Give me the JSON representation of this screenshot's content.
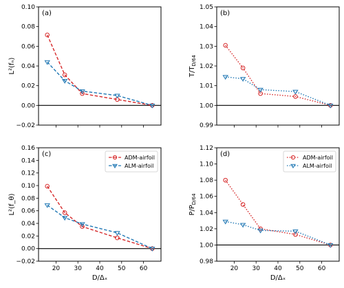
{
  "chart_data": [
    {
      "type": "line",
      "panel_label": "(a)",
      "ylabel": "L²(fₙ)",
      "xlabel": "",
      "x": [
        16,
        24,
        32,
        48,
        64
      ],
      "xlim": [
        12,
        68
      ],
      "ylim": [
        -0.02,
        0.1
      ],
      "yticks": [
        -0.02,
        0.0,
        0.02,
        0.04,
        0.06,
        0.08,
        0.1
      ],
      "ytick_labels": [
        "−0.02",
        "0.00",
        "0.02",
        "0.04",
        "0.06",
        "0.08",
        "0.10"
      ],
      "xticks": [
        20,
        30,
        40,
        50,
        60
      ],
      "xtick_labels": [
        "",
        "",
        "",
        "",
        ""
      ],
      "hline": 0.0,
      "series": [
        {
          "values": [
            0.0715,
            0.031,
            0.012,
            0.006,
            0.0
          ],
          "color": "#d62728",
          "style": "dashed",
          "marker": "circle"
        },
        {
          "values": [
            0.044,
            0.025,
            0.0145,
            0.01,
            0.0
          ],
          "color": "#1f77b4",
          "style": "dashed",
          "marker": "triangle-down"
        }
      ],
      "legend": null
    },
    {
      "type": "line",
      "panel_label": "(b)",
      "ylabel": "T/T",
      "ylabel_sub": "D/64",
      "xlabel": "",
      "x": [
        16,
        24,
        32,
        48,
        64
      ],
      "xlim": [
        12,
        68
      ],
      "ylim": [
        0.99,
        1.05
      ],
      "yticks": [
        0.99,
        1.0,
        1.01,
        1.02,
        1.03,
        1.04,
        1.05
      ],
      "ytick_labels": [
        "0.99",
        "1.00",
        "1.01",
        "1.02",
        "1.03",
        "1.04",
        "1.05"
      ],
      "xticks": [
        20,
        30,
        40,
        50,
        60
      ],
      "xtick_labels": [
        "",
        "",
        "",
        "",
        ""
      ],
      "hline": 1.0,
      "series": [
        {
          "values": [
            1.0305,
            1.019,
            1.006,
            1.0045,
            1.0
          ],
          "color": "#d62728",
          "style": "dotted",
          "marker": "circle"
        },
        {
          "values": [
            1.0145,
            1.0135,
            1.008,
            1.007,
            1.0
          ],
          "color": "#1f77b4",
          "style": "dotted",
          "marker": "triangle-down"
        }
      ],
      "legend": null
    },
    {
      "type": "line",
      "panel_label": "(c)",
      "ylabel": "L²(f_θ)",
      "xlabel": "D/Δₓ",
      "x": [
        16,
        24,
        32,
        48,
        64
      ],
      "xlim": [
        12,
        68
      ],
      "ylim": [
        -0.02,
        0.16
      ],
      "yticks": [
        -0.02,
        0.0,
        0.02,
        0.04,
        0.06,
        0.08,
        0.1,
        0.12,
        0.14,
        0.16
      ],
      "ytick_labels": [
        "−0.02",
        "0.00",
        "0.02",
        "0.04",
        "0.06",
        "0.08",
        "0.10",
        "0.12",
        "0.14",
        "0.16"
      ],
      "xticks": [
        20,
        30,
        40,
        50,
        60
      ],
      "xtick_labels": [
        "20",
        "30",
        "40",
        "50",
        "60"
      ],
      "hline": 0.0,
      "series": [
        {
          "name": "ADM-airfoil",
          "values": [
            0.099,
            0.057,
            0.035,
            0.017,
            0.0
          ],
          "color": "#d62728",
          "style": "dashed",
          "marker": "circle"
        },
        {
          "name": "ALM-airfoil",
          "values": [
            0.069,
            0.049,
            0.039,
            0.025,
            0.0
          ],
          "color": "#1f77b4",
          "style": "dashed",
          "marker": "triangle-down"
        }
      ],
      "legend": "top-right"
    },
    {
      "type": "line",
      "panel_label": "(d)",
      "ylabel": "P/P",
      "ylabel_sub": "D/64",
      "xlabel": "D/Δₓ",
      "x": [
        16,
        24,
        32,
        48,
        64
      ],
      "xlim": [
        12,
        68
      ],
      "ylim": [
        0.98,
        1.12
      ],
      "yticks": [
        0.98,
        1.0,
        1.02,
        1.04,
        1.06,
        1.08,
        1.1,
        1.12
      ],
      "ytick_labels": [
        "0.98",
        "1.00",
        "1.02",
        "1.04",
        "1.06",
        "1.08",
        "1.10",
        "1.12"
      ],
      "xticks": [
        20,
        30,
        40,
        50,
        60
      ],
      "xtick_labels": [
        "20",
        "30",
        "40",
        "50",
        "60"
      ],
      "hline": 1.0,
      "series": [
        {
          "name": "ADM-airfoil",
          "values": [
            1.08,
            1.05,
            1.02,
            1.013,
            1.0
          ],
          "color": "#d62728",
          "style": "dotted",
          "marker": "circle"
        },
        {
          "name": "ALM-airfoil",
          "values": [
            1.029,
            1.025,
            1.018,
            1.017,
            1.0
          ],
          "color": "#1f77b4",
          "style": "dotted",
          "marker": "triangle-down"
        }
      ],
      "legend": "top-right"
    }
  ]
}
